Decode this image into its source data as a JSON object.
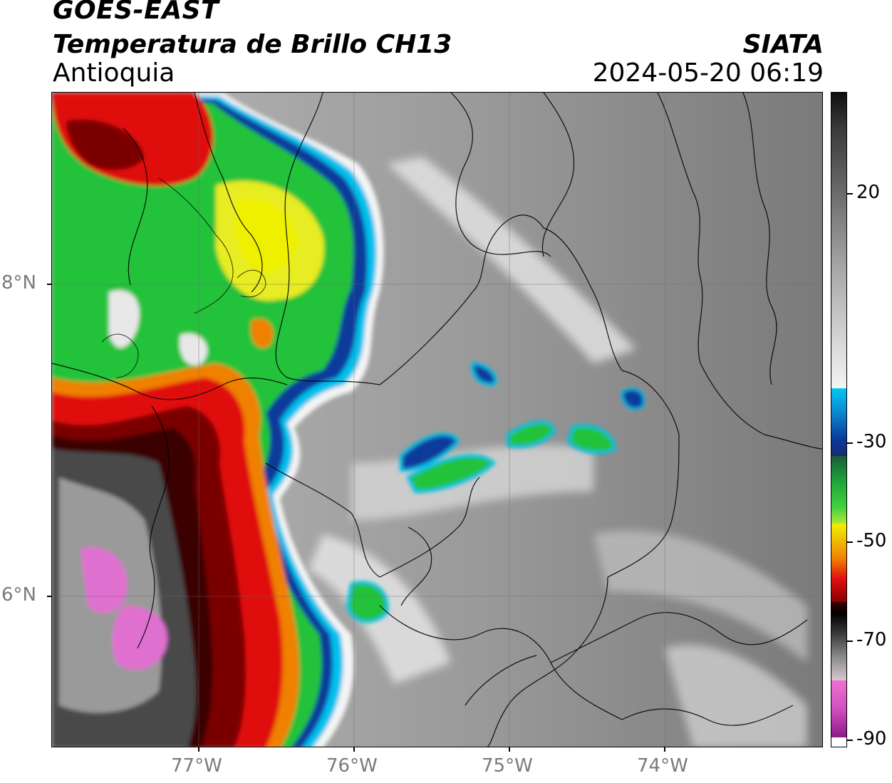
{
  "header": {
    "satellite": "GOES-EAST",
    "product": "Temperatura de Brillo CH13",
    "region": "Antioquia",
    "organization": "SIATA",
    "datetime": "2024-05-20 06:19"
  },
  "axes": {
    "lat_labels": [
      "8°N",
      "6°N"
    ],
    "lon_labels": [
      "77°W",
      "76°W",
      "75°W",
      "74°W"
    ]
  },
  "colorbar": {
    "tick_labels": [
      "20",
      "-30",
      "-50",
      "-70",
      "-90"
    ],
    "colors": {
      "warm_gray_top": "#0e0e0e",
      "white": "#f4f4f4",
      "cyan": "#00c8f0",
      "blue": "#0a3a9c",
      "green": "#21c23a",
      "yellow": "#f0f000",
      "orange": "#f08000",
      "red": "#e01010",
      "dark_red": "#5a0000",
      "black": "#000000",
      "pink": "#e070d0",
      "purple": "#8c1a8c"
    }
  }
}
